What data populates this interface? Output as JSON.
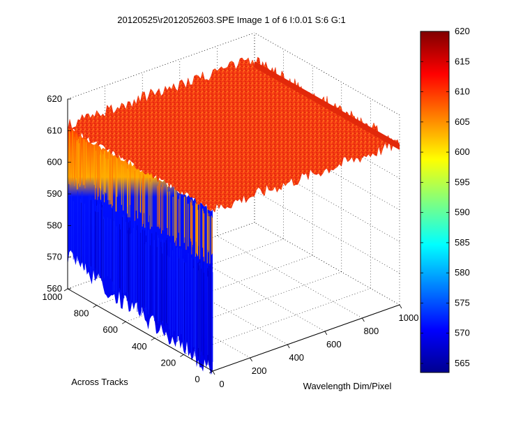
{
  "chart_data": {
    "type": "surface",
    "title": "20120525\\r2012052603.SPE  Image 1 of 6  I:0.01  S:6  G:1",
    "xlabel": "Wavelength Dim/Pixel",
    "ylabel": "Across Tracks",
    "zlabel": "",
    "x_ticks": [
      "0",
      "200",
      "400",
      "600",
      "800",
      "1000"
    ],
    "y_ticks": [
      "0",
      "200",
      "400",
      "600",
      "800",
      "1000"
    ],
    "z_ticks": [
      "560",
      "570",
      "580",
      "590",
      "600",
      "610",
      "620"
    ],
    "xlim": [
      0,
      1000
    ],
    "ylim": [
      0,
      1000
    ],
    "zlim": [
      560,
      620
    ],
    "grid": true,
    "colormap": "jet",
    "colorbar": {
      "position": "right",
      "ticks": [
        "565",
        "570",
        "575",
        "580",
        "585",
        "590",
        "595",
        "600",
        "605",
        "610",
        "615",
        "620"
      ],
      "range": [
        565,
        620
      ]
    },
    "surface": {
      "plateau_level": 611,
      "plateau_noise": 2,
      "edge_level_near_x0": 562,
      "front_face_top": 598,
      "front_face_bottom_at_y1000": 570,
      "front_face_bottom_at_y0": 560
    }
  }
}
